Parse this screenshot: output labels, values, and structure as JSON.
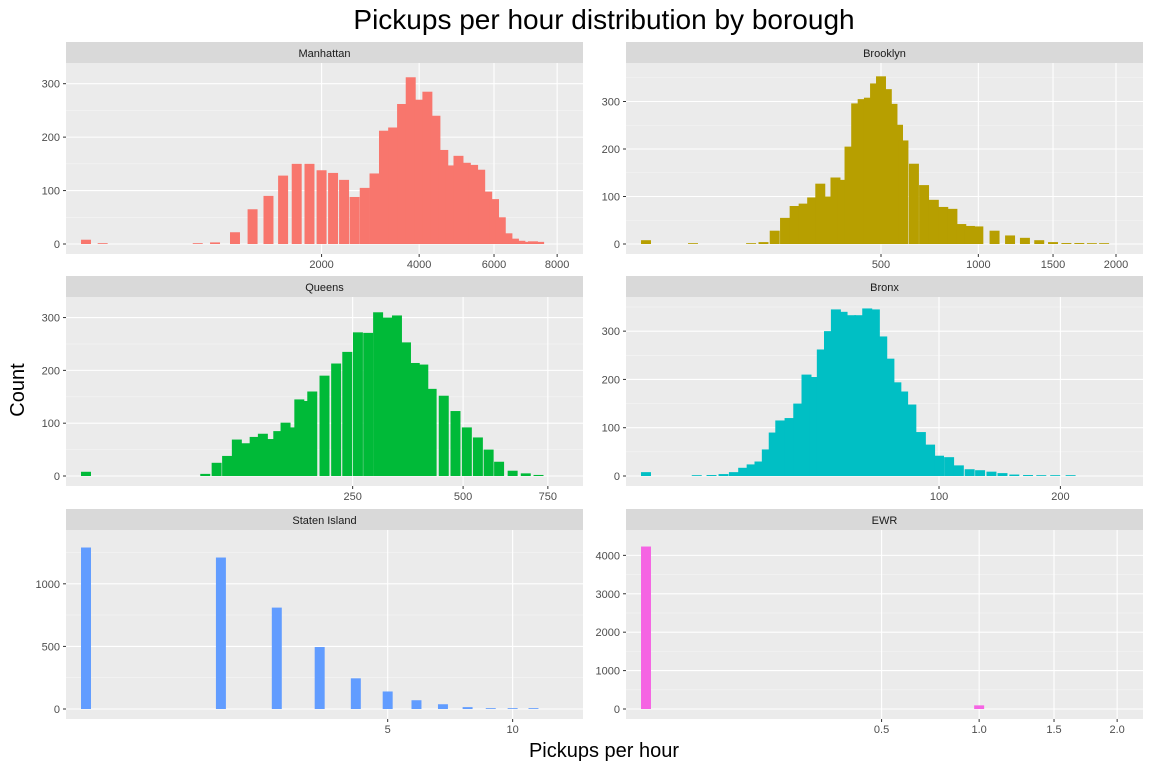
{
  "chart_data": {
    "type": "bar",
    "title": "Pickups per hour distribution by borough",
    "xlabel": "Pickups per hour",
    "ylabel": "Count",
    "grid": true,
    "legend": "none",
    "x_scale": "sqrt",
    "panels": [
      {
        "name": "Manhattan",
        "color": "#F8766D",
        "x_ticks": [
          2000,
          4000,
          6000,
          8000
        ],
        "y_ticks": [
          0,
          100,
          200,
          300
        ],
        "xlim": [
          0,
          8200
        ],
        "ylim": [
          0,
          320
        ],
        "bins": [
          [
            0,
            8
          ],
          [
            10,
            1
          ],
          [
            50,
            0
          ],
          [
            150,
            0
          ],
          [
            300,
            0
          ],
          [
            450,
            1
          ],
          [
            600,
            3
          ],
          [
            800,
            22
          ],
          [
            1000,
            65
          ],
          [
            1200,
            90
          ],
          [
            1400,
            128
          ],
          [
            1600,
            150
          ],
          [
            1800,
            150
          ],
          [
            2000,
            138
          ],
          [
            2200,
            133
          ],
          [
            2400,
            120
          ],
          [
            2600,
            88
          ],
          [
            2800,
            105
          ],
          [
            3000,
            132
          ],
          [
            3200,
            212
          ],
          [
            3400,
            218
          ],
          [
            3600,
            262
          ],
          [
            3800,
            312
          ],
          [
            4000,
            270
          ],
          [
            4200,
            285
          ],
          [
            4400,
            240
          ],
          [
            4600,
            176
          ],
          [
            4800,
            147
          ],
          [
            5000,
            165
          ],
          [
            5200,
            152
          ],
          [
            5400,
            148
          ],
          [
            5600,
            139
          ],
          [
            5800,
            98
          ],
          [
            6000,
            84
          ],
          [
            6200,
            50
          ],
          [
            6400,
            20
          ],
          [
            6600,
            10
          ],
          [
            6800,
            6
          ],
          [
            7000,
            4
          ],
          [
            7200,
            5
          ],
          [
            7400,
            4
          ]
        ]
      },
      {
        "name": "Brooklyn",
        "color": "#B79F00",
        "x_ticks": [
          500,
          1000,
          1500,
          2000
        ],
        "y_ticks": [
          0,
          100,
          200,
          300
        ],
        "xlim": [
          0,
          2060
        ],
        "ylim": [
          0,
          360
        ],
        "bins": [
          [
            0,
            8
          ],
          [
            10,
            0
          ],
          [
            20,
            1
          ],
          [
            40,
            0
          ],
          [
            60,
            0
          ],
          [
            80,
            0
          ],
          [
            100,
            1
          ],
          [
            125,
            4
          ],
          [
            150,
            28
          ],
          [
            175,
            55
          ],
          [
            200,
            80
          ],
          [
            225,
            85
          ],
          [
            250,
            98
          ],
          [
            275,
            127
          ],
          [
            300,
            100
          ],
          [
            325,
            140
          ],
          [
            350,
            135
          ],
          [
            375,
            205
          ],
          [
            400,
            296
          ],
          [
            425,
            305
          ],
          [
            450,
            308
          ],
          [
            475,
            338
          ],
          [
            500,
            353
          ],
          [
            525,
            326
          ],
          [
            550,
            295
          ],
          [
            575,
            251
          ],
          [
            600,
            218
          ],
          [
            650,
            169
          ],
          [
            700,
            124
          ],
          [
            750,
            93
          ],
          [
            800,
            78
          ],
          [
            850,
            74
          ],
          [
            900,
            42
          ],
          [
            950,
            38
          ],
          [
            1000,
            37
          ],
          [
            1100,
            28
          ],
          [
            1200,
            18
          ],
          [
            1300,
            13
          ],
          [
            1400,
            8
          ],
          [
            1500,
            4
          ],
          [
            1600,
            2
          ],
          [
            1700,
            2
          ],
          [
            1800,
            1
          ],
          [
            1900,
            1
          ]
        ]
      },
      {
        "name": "Queens",
        "color": "#00BA38",
        "x_ticks": [
          250,
          500,
          750
        ],
        "y_ticks": [
          0,
          100,
          200,
          300
        ],
        "xlim": [
          0,
          800
        ],
        "ylim": [
          0,
          320
        ],
        "bins": [
          [
            0,
            8
          ],
          [
            3,
            0
          ],
          [
            10,
            0
          ],
          [
            20,
            0
          ],
          [
            30,
            0
          ],
          [
            40,
            0
          ],
          [
            50,
            4
          ],
          [
            60,
            25
          ],
          [
            70,
            38
          ],
          [
            80,
            69
          ],
          [
            90,
            62
          ],
          [
            100,
            74
          ],
          [
            110,
            80
          ],
          [
            120,
            70
          ],
          [
            130,
            85
          ],
          [
            140,
            101
          ],
          [
            150,
            92
          ],
          [
            160,
            145
          ],
          [
            170,
            142
          ],
          [
            180,
            160
          ],
          [
            200,
            190
          ],
          [
            220,
            213
          ],
          [
            240,
            235
          ],
          [
            260,
            272
          ],
          [
            280,
            271
          ],
          [
            300,
            310
          ],
          [
            320,
            300
          ],
          [
            340,
            304
          ],
          [
            360,
            253
          ],
          [
            380,
            214
          ],
          [
            400,
            211
          ],
          [
            420,
            165
          ],
          [
            450,
            152
          ],
          [
            480,
            123
          ],
          [
            510,
            92
          ],
          [
            540,
            73
          ],
          [
            570,
            50
          ],
          [
            600,
            27
          ],
          [
            640,
            10
          ],
          [
            680,
            5
          ],
          [
            720,
            2
          ]
        ]
      },
      {
        "name": "Bronx",
        "color": "#00BFC4",
        "x_ticks": [
          100,
          200
        ],
        "y_ticks": [
          0,
          100,
          200,
          300
        ],
        "xlim": [
          0,
          265
        ],
        "ylim": [
          0,
          350
        ],
        "bins": [
          [
            0,
            8
          ],
          [
            1,
            0
          ],
          [
            3,
            1
          ],
          [
            5,
            2
          ],
          [
            7,
            4
          ],
          [
            9,
            8
          ],
          [
            11,
            17
          ],
          [
            13,
            24
          ],
          [
            15,
            30
          ],
          [
            17,
            55
          ],
          [
            19,
            90
          ],
          [
            21,
            115
          ],
          [
            24,
            120
          ],
          [
            27,
            150
          ],
          [
            30,
            210
          ],
          [
            33,
            205
          ],
          [
            36,
            262
          ],
          [
            39,
            300
          ],
          [
            42,
            345
          ],
          [
            45,
            340
          ],
          [
            49,
            333
          ],
          [
            53,
            333
          ],
          [
            57,
            347
          ],
          [
            61,
            345
          ],
          [
            65,
            289
          ],
          [
            69,
            243
          ],
          [
            73,
            194
          ],
          [
            77,
            175
          ],
          [
            82,
            148
          ],
          [
            88,
            91
          ],
          [
            94,
            65
          ],
          [
            100,
            42
          ],
          [
            107,
            39
          ],
          [
            114,
            22
          ],
          [
            122,
            14
          ],
          [
            130,
            12
          ],
          [
            139,
            9
          ],
          [
            148,
            6
          ],
          [
            158,
            3
          ],
          [
            170,
            2
          ],
          [
            182,
            1
          ],
          [
            195,
            1
          ],
          [
            210,
            1
          ],
          [
            225,
            0
          ]
        ]
      },
      {
        "name": "Staten Island",
        "color": "#619CFF",
        "x_ticks": [
          5,
          10
        ],
        "y_ticks": [
          0,
          500,
          1000
        ],
        "xlim": [
          0,
          12.5
        ],
        "ylim": [
          0,
          1350
        ],
        "bins": [
          [
            0,
            1290
          ],
          [
            1,
            1210
          ],
          [
            2,
            810
          ],
          [
            3,
            495
          ],
          [
            4,
            245
          ],
          [
            5,
            140
          ],
          [
            6,
            70
          ],
          [
            7,
            38
          ],
          [
            8,
            15
          ],
          [
            9,
            5
          ],
          [
            10,
            2
          ],
          [
            11,
            1
          ]
        ]
      },
      {
        "name": "EWR",
        "color": "#F564E3",
        "x_ticks": [
          0.5,
          1.0,
          1.5,
          2.0
        ],
        "y_ticks": [
          0,
          1000,
          2000,
          3000,
          4000
        ],
        "xlim": [
          0,
          2.05
        ],
        "ylim": [
          0,
          4400
        ],
        "bins": [
          [
            0,
            4230
          ],
          [
            1,
            95
          ]
        ]
      }
    ]
  }
}
